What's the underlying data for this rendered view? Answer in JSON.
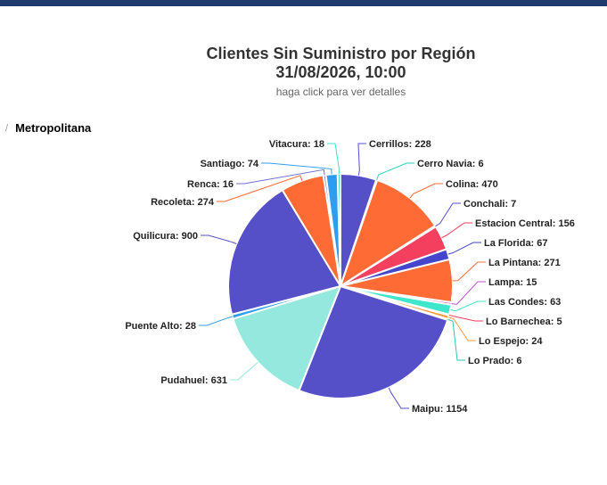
{
  "header": {
    "title_line1": "Clientes Sin Suministro por Región",
    "title_line2": "31/08/2026, 10:00",
    "subtitle": "haga click para ver detalles"
  },
  "breadcrumb": {
    "separator": "/",
    "current": "Metropolitana"
  },
  "colors": {
    "topbar": "#1f3b6e"
  },
  "chart_data": {
    "type": "pie",
    "title": "Clientes Sin Suministro por Región 31/08/2026, 10:00",
    "subtitle": "haga click para ver detalles",
    "slices": [
      {
        "name": "Cerrillos",
        "value": 228,
        "color": "#5650c8"
      },
      {
        "name": "Cerro Navia",
        "value": 6,
        "color": "#25d6bb"
      },
      {
        "name": "Colina",
        "value": 470,
        "color": "#ff6b35"
      },
      {
        "name": "Conchali",
        "value": 7,
        "color": "#5650c8"
      },
      {
        "name": "Estacion Central",
        "value": 156,
        "color": "#f43f5e"
      },
      {
        "name": "La Florida",
        "value": 67,
        "color": "#4646cc"
      },
      {
        "name": "La Pintana",
        "value": 271,
        "color": "#ff6b35"
      },
      {
        "name": "Lampa",
        "value": 15,
        "color": "#c152d6"
      },
      {
        "name": "Las Condes",
        "value": 63,
        "color": "#3ee6cc"
      },
      {
        "name": "Lo Barnechea",
        "value": 5,
        "color": "#f43f5e"
      },
      {
        "name": "Lo Espejo",
        "value": 24,
        "color": "#ff9a3c"
      },
      {
        "name": "Lo Prado",
        "value": 6,
        "color": "#2ec4b6"
      },
      {
        "name": "Maipu",
        "value": 1154,
        "color": "#5650c8"
      },
      {
        "name": "Pudahuel",
        "value": 631,
        "color": "#95e8de"
      },
      {
        "name": "Puente Alto",
        "value": 28,
        "color": "#2e9df0"
      },
      {
        "name": "Quilicura",
        "value": 900,
        "color": "#5650c8"
      },
      {
        "name": "Recoleta",
        "value": 274,
        "color": "#ff6b35"
      },
      {
        "name": "Renca",
        "value": 16,
        "color": "#6f6fd6"
      },
      {
        "name": "Santiago",
        "value": 74,
        "color": "#2e9df0"
      },
      {
        "name": "Vitacura",
        "value": 18,
        "color": "#3ee6cc"
      }
    ],
    "label_format": "{name}: {value}"
  }
}
